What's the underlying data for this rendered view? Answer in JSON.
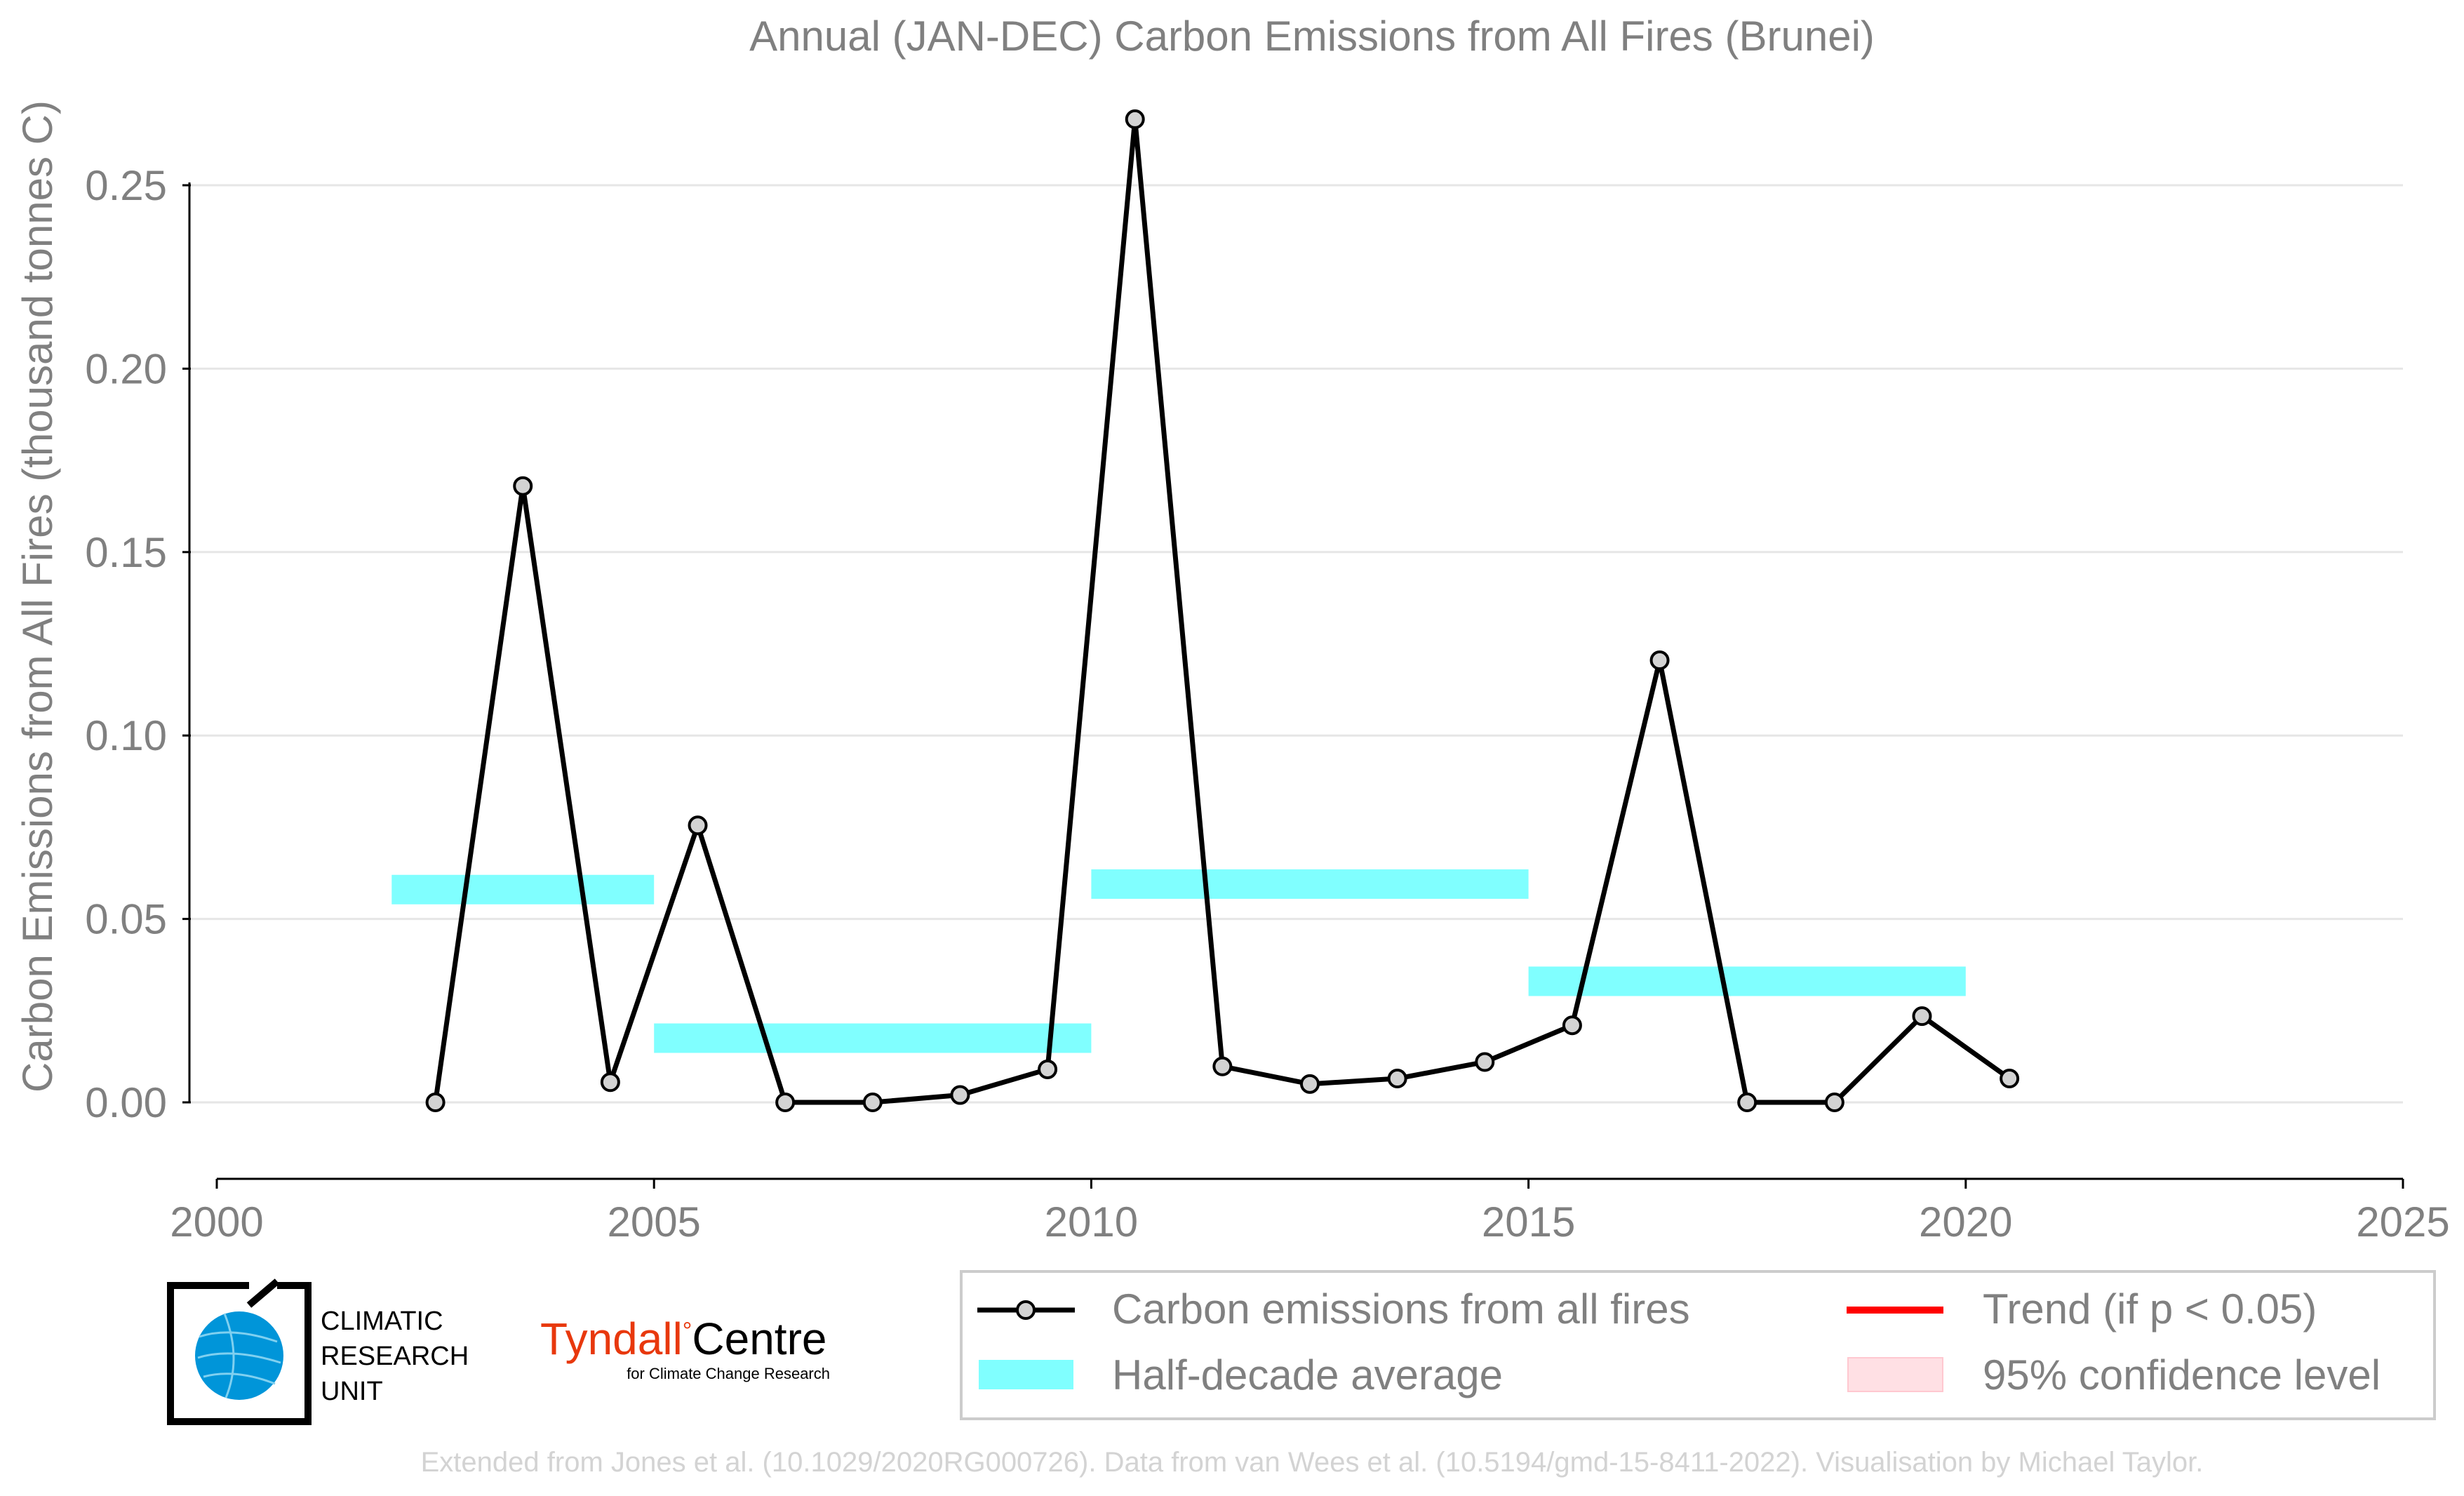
{
  "chart_data": {
    "type": "line",
    "title": "Annual (JAN-DEC) Carbon Emissions from All Fires (Brunei)",
    "xlabel": "",
    "ylabel": "Carbon Emissions from All Fires (thousand tonnes C)",
    "xlim": [
      2000,
      2025
    ],
    "ylim": [
      -0.021,
      0.265
    ],
    "x_ticks": [
      2000,
      2005,
      2010,
      2015,
      2020,
      2025
    ],
    "x_tick_labels": [
      "2000",
      "2005",
      "2010",
      "2015",
      "2020",
      "2025"
    ],
    "y_ticks": [
      0.0,
      0.05,
      0.1,
      0.15,
      0.2,
      0.25
    ],
    "y_tick_labels": [
      "0.00",
      "0.05",
      "0.10",
      "0.15",
      "0.20",
      "0.25"
    ],
    "grid": "horizontal",
    "legend_position": "bottom-center",
    "series": [
      {
        "name": "Carbon emissions from all fires",
        "color": "#000000",
        "marker_fill": "#d3d3d3",
        "x": [
          2002.5,
          2003.5,
          2004.5,
          2005.5,
          2006.5,
          2007.5,
          2008.5,
          2009.5,
          2010.5,
          2011.5,
          2012.5,
          2013.5,
          2014.5,
          2015.5,
          2016.5,
          2017.5,
          2018.5,
          2019.5,
          2020.5
        ],
        "y": [
          0.0,
          0.168,
          0.0055,
          0.0755,
          0.0,
          0.0,
          0.002,
          0.009,
          0.268,
          0.0098,
          0.005,
          0.0065,
          0.011,
          0.021,
          0.1205,
          0.0,
          0.0,
          0.0235,
          0.0065
        ]
      }
    ],
    "half_decade_average": {
      "name": "Half-decade average",
      "color": "#80ffff",
      "segments": [
        {
          "x_start": 2002,
          "x_end": 2005,
          "y": 0.058
        },
        {
          "x_start": 2005,
          "x_end": 2010,
          "y": 0.0175
        },
        {
          "x_start": 2010,
          "x_end": 2015,
          "y": 0.0595
        },
        {
          "x_start": 2015,
          "x_end": 2020,
          "y": 0.033
        }
      ]
    },
    "legend": [
      {
        "label": "Carbon emissions from all fires",
        "style": "line-marker",
        "color": "#000000"
      },
      {
        "label": "Trend (if p < 0.05)",
        "style": "line",
        "color": "#ff0000"
      },
      {
        "label": "Half-decade average",
        "style": "band",
        "color": "#80ffff"
      },
      {
        "label": "95% confidence level",
        "style": "patch",
        "color": "#ffe0e4"
      }
    ]
  },
  "logos": {
    "cru_lines": [
      "CLIMATIC",
      "RESEARCH",
      "UNIT"
    ],
    "tyndall_name": "Tyndall",
    "tyndall_centre": "Centre",
    "tyndall_sub": "for Climate Change Research"
  },
  "footer": "Extended from Jones et al. (10.1029/2020RG000726). Data from van Wees et al. (10.5194/gmd-15-8411-2022). Visualisation by Michael Taylor.",
  "colors": {
    "text": "#808080",
    "axis": "#000000",
    "grid": "#e6e6e6",
    "footer": "#d3d3d3",
    "tyndall_red": "#e8380d",
    "cru_blue": "#0095d9"
  }
}
